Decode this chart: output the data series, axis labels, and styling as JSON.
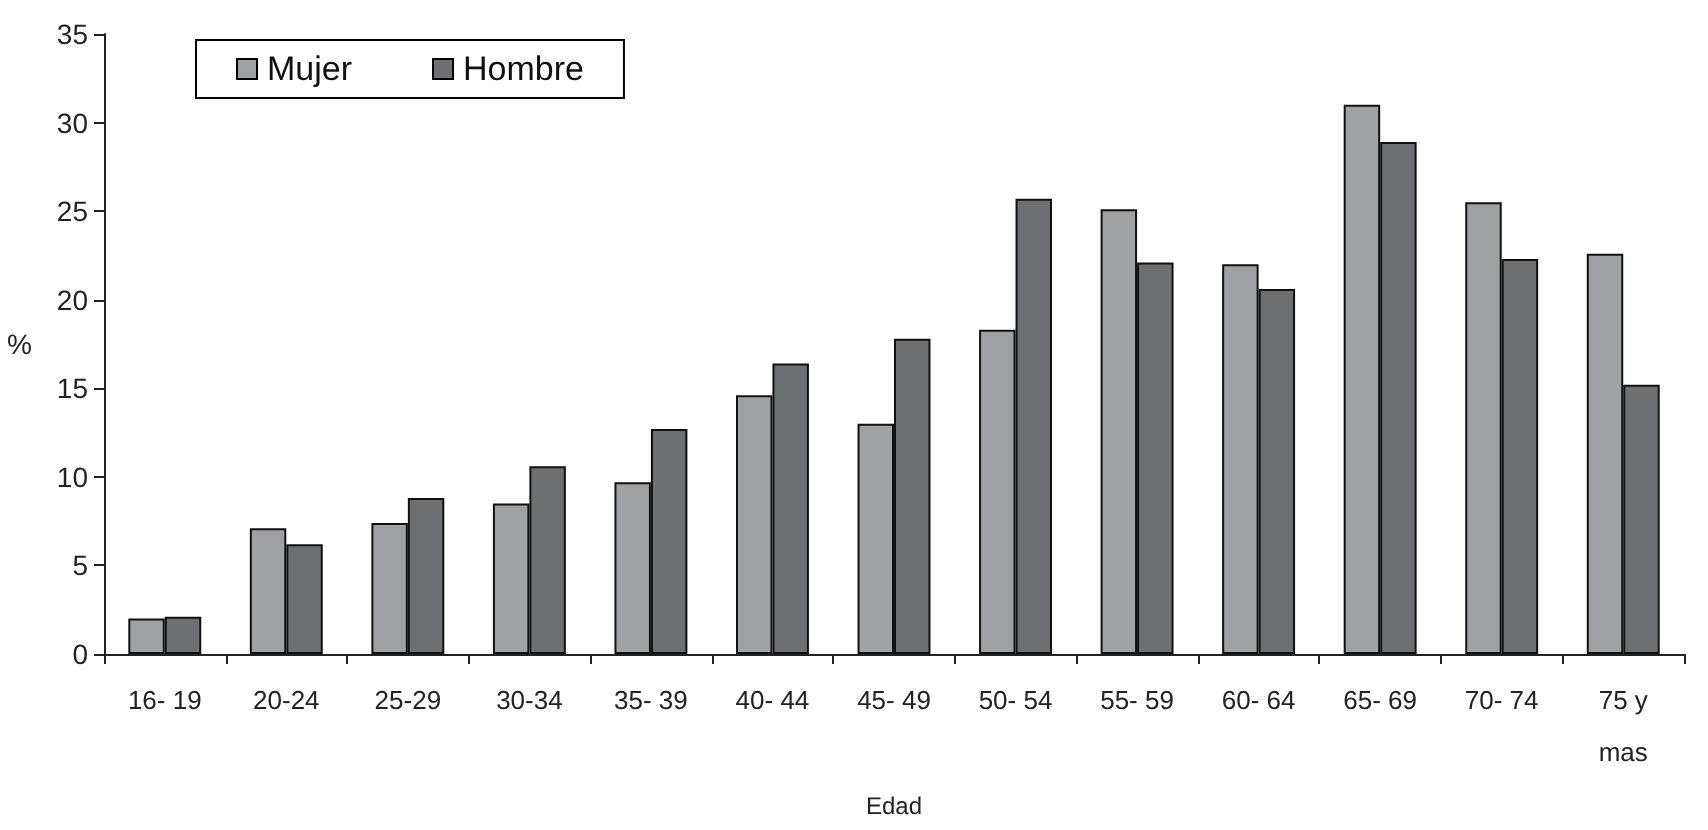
{
  "chart_data": {
    "type": "bar",
    "xlabel": "Edad",
    "ylabel": "%",
    "categories": [
      "16- 19",
      "20-24",
      "25-29",
      "30-34",
      "35- 39",
      "40- 44",
      "45- 49",
      "50- 54",
      "55- 59",
      "60- 64",
      "65- 69",
      "70- 74",
      "75 y\nmas"
    ],
    "series": [
      {
        "name": "Mujer",
        "color": "#a0a1a3",
        "values": [
          2.0,
          7.1,
          7.4,
          8.5,
          9.7,
          14.6,
          13.0,
          18.3,
          25.1,
          22.0,
          31.0,
          25.5,
          22.6
        ]
      },
      {
        "name": "Hombre",
        "color": "#6e6f71",
        "values": [
          2.1,
          6.2,
          8.8,
          10.6,
          12.7,
          16.4,
          17.8,
          25.7,
          22.1,
          20.6,
          28.9,
          22.3,
          15.2
        ]
      }
    ],
    "ylim": [
      0,
      35
    ],
    "yticks": [
      0,
      5,
      10,
      15,
      20,
      25,
      30,
      35
    ],
    "grid": false,
    "legend": "top left"
  }
}
